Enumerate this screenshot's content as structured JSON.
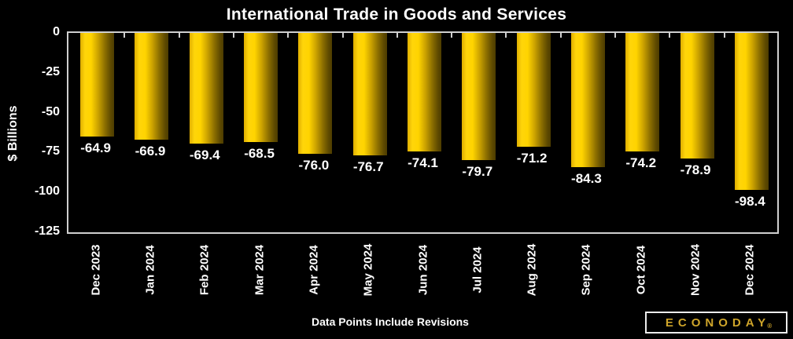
{
  "title": "International Trade in Goods and Services",
  "footer": "Data Points Include Revisions",
  "logo": {
    "text": "ECONODAY",
    "reg": "®"
  },
  "colors": {
    "background": "#000000",
    "text": "#ffffff",
    "axis": "#cfcfcf",
    "bar_highlight": "#ffd400",
    "bar_edge_light": "#dfae00",
    "bar_shadow": "#4d3c00",
    "logo_gold": "#cfa52a"
  },
  "chart_data": {
    "type": "bar",
    "title": "International Trade in Goods and Services",
    "xlabel": "",
    "ylabel": "$ Billions",
    "categories": [
      "Dec 2023",
      "Jan 2024",
      "Feb 2024",
      "Mar 2024",
      "Apr 2024",
      "May 2024",
      "Jun 2024",
      "Jul 2024",
      "Aug 2024",
      "Sep 2024",
      "Oct 2024",
      "Nov 2024",
      "Dec 2024"
    ],
    "values": [
      -64.9,
      -66.9,
      -69.4,
      -68.5,
      -76.0,
      -76.7,
      -74.1,
      -79.7,
      -71.2,
      -84.3,
      -74.2,
      -78.9,
      -98.4
    ],
    "value_labels": [
      "-64.9",
      "-66.9",
      "-69.4",
      "-68.5",
      "-76.0",
      "-76.7",
      "-74.1",
      "-79.7",
      "-71.2",
      "-84.3",
      "-74.2",
      "-78.9",
      "-98.4"
    ],
    "ylim": [
      -125,
      0
    ],
    "yticks": [
      0,
      -25,
      -50,
      -75,
      -100,
      -125
    ],
    "grid": false,
    "legend": "none",
    "annotation": "Data Points Include Revisions"
  }
}
